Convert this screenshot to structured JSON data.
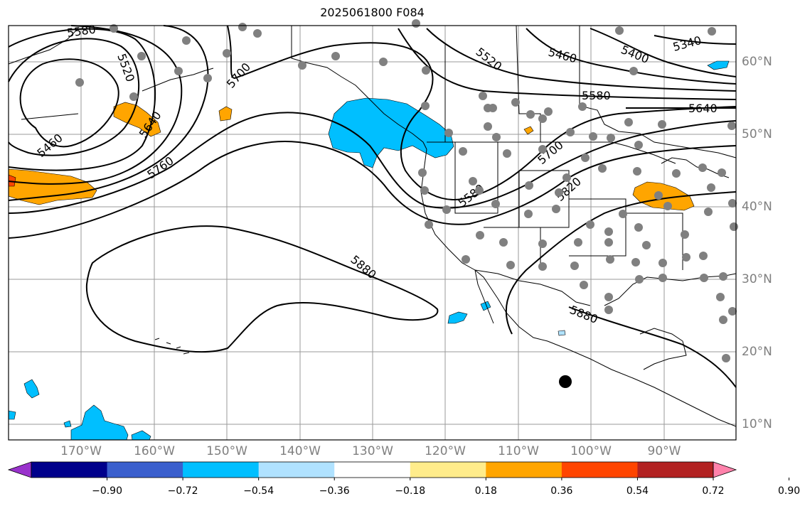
{
  "title": "2025061800 F084",
  "lon_labels": [
    "170°W",
    "160°W",
    "150°W",
    "140°W",
    "130°W",
    "120°W",
    "110°W",
    "100°W",
    "90°W"
  ],
  "lat_labels": [
    "60°N",
    "50°N",
    "40°N",
    "30°N",
    "20°N",
    "10°N"
  ],
  "contour_labels": [
    "5580",
    "5520",
    "5460",
    "5640",
    "5700",
    "5760",
    "5880",
    "5520",
    "5460",
    "5400",
    "5340",
    "5580",
    "5640",
    "5700",
    "5820",
    "5580",
    "5880"
  ],
  "colorbar": {
    "colors": [
      "#9932cc",
      "#00008b",
      "#3a5fcd",
      "#00bfff",
      "#b0e2ff",
      "#ffffff",
      "#ffec8b",
      "#ffa500",
      "#ff4500",
      "#b22222",
      "#ff82ab"
    ],
    "ticks": [
      "−0.90",
      "−0.72",
      "−0.54",
      "−0.36",
      "−0.18",
      "0.18",
      "0.36",
      "0.54",
      "0.72",
      "0.90"
    ]
  },
  "legend_markers": {
    "station_color": "#808080",
    "feature_color": "#000000"
  }
}
